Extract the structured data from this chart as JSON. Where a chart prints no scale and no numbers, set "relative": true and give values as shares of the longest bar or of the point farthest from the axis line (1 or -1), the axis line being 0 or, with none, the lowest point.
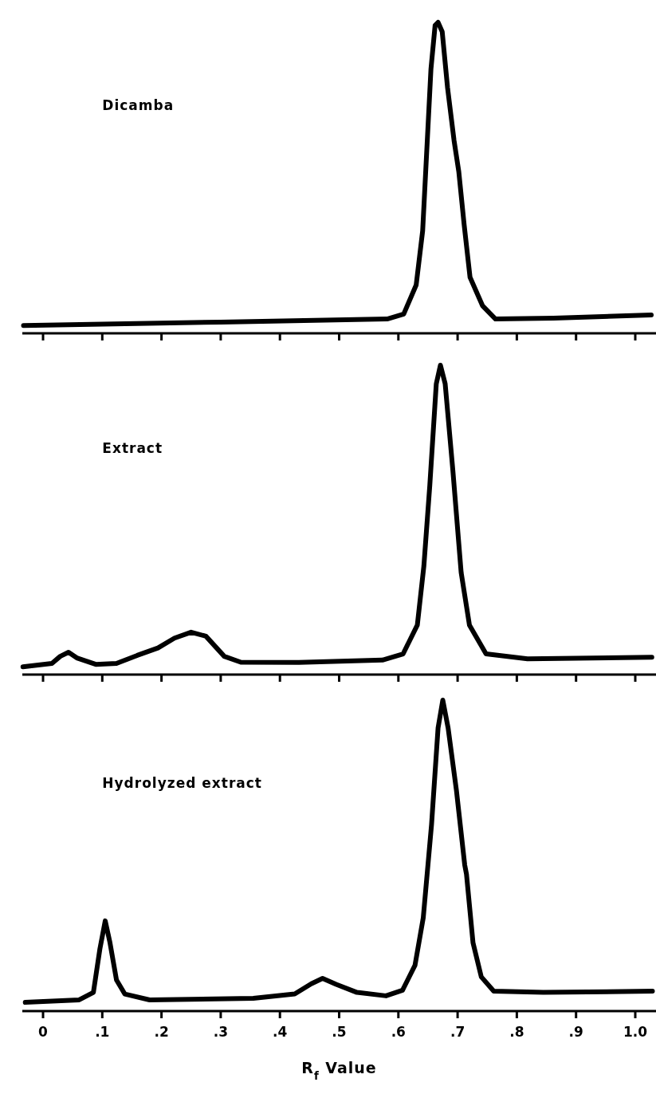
{
  "chart_data": [
    {
      "type": "line",
      "title": "Dicamba",
      "relative": true,
      "xlim": [
        -0.035,
        1.035
      ],
      "tick_labels": false,
      "grid": false,
      "marker": "none",
      "line_style": "solid",
      "series": [
        {
          "color": "#000000",
          "x": [
            -0.033,
            0.3,
            0.581,
            0.609,
            0.63,
            0.641,
            0.648,
            0.655,
            0.662,
            0.667,
            0.674,
            0.683,
            0.694,
            0.702,
            0.711,
            0.721,
            0.742,
            0.764,
            0.862,
            1.027
          ],
          "values": [
            0.025,
            0.036,
            0.046,
            0.062,
            0.155,
            0.33,
            0.59,
            0.85,
            0.99,
            1.0,
            0.97,
            0.79,
            0.62,
            0.52,
            0.35,
            0.18,
            0.089,
            0.046,
            0.049,
            0.059
          ]
        }
      ]
    },
    {
      "type": "line",
      "title": "Extract",
      "relative": true,
      "xlim": [
        -0.035,
        1.035
      ],
      "tick_labels": false,
      "grid": false,
      "marker": "none",
      "line_style": "solid",
      "series": [
        {
          "color": "#000000",
          "x": [
            -0.034,
            0.015,
            0.029,
            0.043,
            0.057,
            0.089,
            0.124,
            0.159,
            0.194,
            0.222,
            0.25,
            0.275,
            0.306,
            0.334,
            0.432,
            0.573,
            0.608,
            0.632,
            0.643,
            0.653,
            0.664,
            0.671,
            0.679,
            0.692,
            0.706,
            0.72,
            0.748,
            0.818,
            1.028
          ],
          "values": [
            0.025,
            0.036,
            0.059,
            0.072,
            0.054,
            0.033,
            0.036,
            0.062,
            0.086,
            0.118,
            0.137,
            0.124,
            0.059,
            0.04,
            0.039,
            0.047,
            0.067,
            0.16,
            0.35,
            0.61,
            0.94,
            1.0,
            0.94,
            0.66,
            0.33,
            0.16,
            0.067,
            0.051,
            0.056
          ]
        }
      ]
    },
    {
      "type": "line",
      "title": "Hydrolyzed extract",
      "xlabel": "R$_{f}$ Value",
      "relative": true,
      "xlim": [
        -0.035,
        1.035
      ],
      "xticks": [
        0,
        {
          "value": 0.1,
          "label": ".1"
        },
        {
          "value": 0.2,
          "label": ".2"
        },
        {
          "value": 0.3,
          "label": ".3"
        },
        {
          "value": 0.4,
          "label": ".4"
        },
        {
          "value": 0.5,
          "label": ".5"
        },
        {
          "value": 0.6,
          "label": ".6"
        },
        {
          "value": 0.7,
          "label": ".7"
        },
        {
          "value": 0.8,
          "label": ".8"
        },
        {
          "value": 0.9,
          "label": ".9"
        },
        {
          "value": 1.0,
          "label": "1.0"
        }
      ],
      "grid": false,
      "marker": "none",
      "line_style": "solid",
      "series": [
        {
          "color": "#000000",
          "x": [
            -0.03,
            0.061,
            0.085,
            0.096,
            0.105,
            0.113,
            0.124,
            0.138,
            0.18,
            0.355,
            0.425,
            0.453,
            0.472,
            0.495,
            0.53,
            0.579,
            0.607,
            0.628,
            0.642,
            0.656,
            0.667,
            0.675,
            0.684,
            0.698,
            0.712,
            0.715,
            0.726,
            0.74,
            0.761,
            0.845,
            1.029
          ],
          "values": [
            0.028,
            0.036,
            0.06,
            0.2,
            0.29,
            0.22,
            0.1,
            0.055,
            0.036,
            0.041,
            0.055,
            0.088,
            0.105,
            0.086,
            0.06,
            0.049,
            0.067,
            0.147,
            0.3,
            0.6,
            0.91,
            1.0,
            0.91,
            0.71,
            0.47,
            0.44,
            0.22,
            0.11,
            0.064,
            0.06,
            0.064
          ]
        }
      ]
    }
  ]
}
